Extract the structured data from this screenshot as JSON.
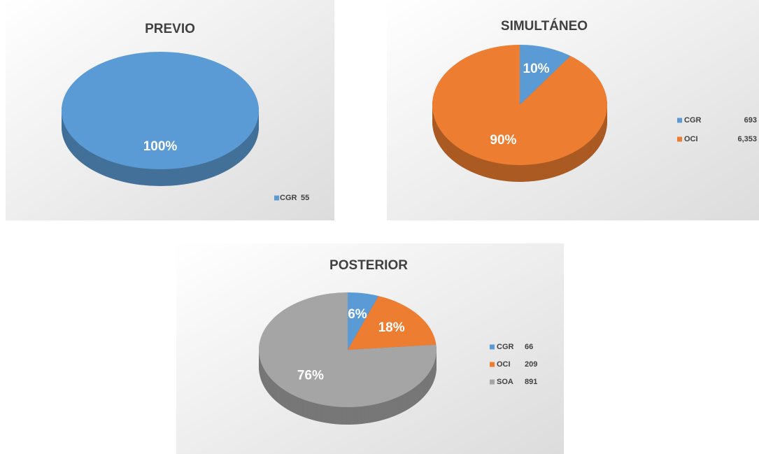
{
  "chart_data": [
    {
      "type": "pie",
      "title": "PREVIO",
      "categories": [
        "CGR"
      ],
      "values": [
        55
      ],
      "percent": [
        100
      ],
      "percent_labels": [
        "100%"
      ],
      "colors": [
        "#5b9bd5"
      ]
    },
    {
      "type": "pie",
      "title": "SIMULTÁNEO",
      "categories": [
        "CGR",
        "OCI"
      ],
      "values": [
        693,
        6353
      ],
      "value_labels": [
        "693",
        "6,353"
      ],
      "percent": [
        10,
        90
      ],
      "percent_labels": [
        "10%",
        "90%"
      ],
      "colors": [
        "#5b9bd5",
        "#ed7d31"
      ]
    },
    {
      "type": "pie",
      "title": "POSTERIOR",
      "categories": [
        "CGR",
        "OCI",
        "SOA"
      ],
      "values": [
        66,
        209,
        891
      ],
      "percent": [
        6,
        18,
        76
      ],
      "percent_labels": [
        "6%",
        "18%",
        "76%"
      ],
      "colors": [
        "#5b9bd5",
        "#ed7d31",
        "#a5a5a5"
      ]
    }
  ]
}
